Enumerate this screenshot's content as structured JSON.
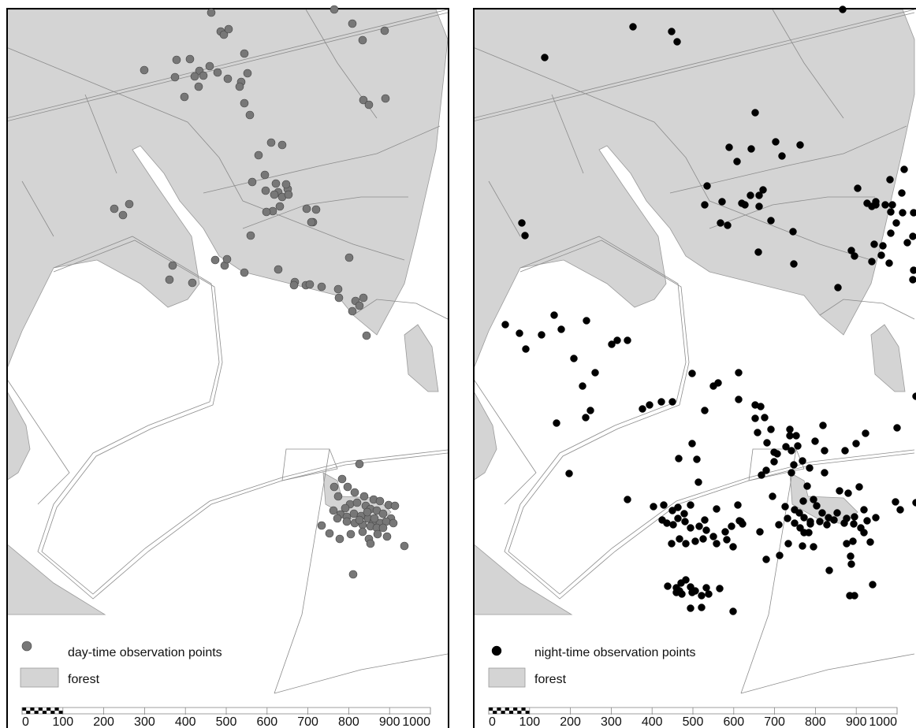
{
  "colors": {
    "forest_fill": "#d4d4d4",
    "road_line": "#8c8c8c",
    "panel_border": "#000000",
    "day_point": "#777777",
    "night_point": "#000000"
  },
  "panels": [
    {
      "id": "day",
      "legend": {
        "points_label": "day-time observation points",
        "forest_label": "forest"
      }
    },
    {
      "id": "night",
      "legend": {
        "points_label": "night-time observation points",
        "forest_label": "forest"
      }
    }
  ],
  "scale_bar": {
    "ticks": [
      "0",
      "100",
      "200",
      "300",
      "400",
      "500",
      "600",
      "700",
      "800",
      "900",
      "1000"
    ]
  }
}
